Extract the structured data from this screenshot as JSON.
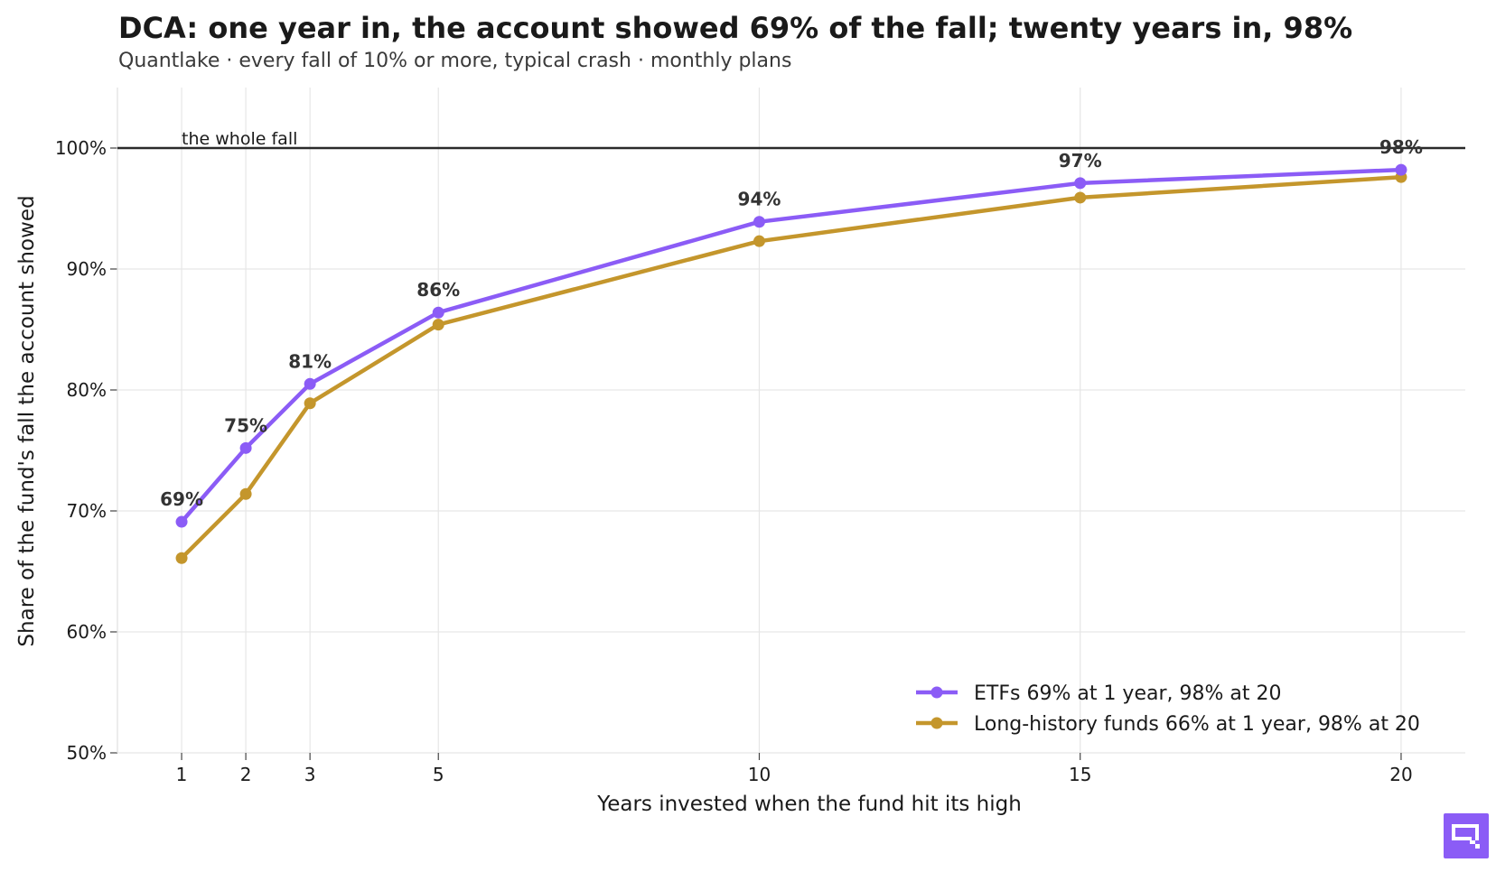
{
  "title": "DCA: one year in, the account showed 69% of the fall; twenty years in, 98%",
  "subtitle": "Quantlake  ·  every fall of 10% or more, typical crash  ·  monthly plans",
  "colors": {
    "etf": "#8b5cf6",
    "long": "#c4962c",
    "reference": "#2a2a2a",
    "grid": "#e6e6e6",
    "logo": "#8b5cf6"
  },
  "logo": {
    "icon": "quantlake-logo-icon"
  },
  "chart_data": {
    "type": "line",
    "xlabel": "Years invested when the fund hit its high",
    "ylabel": "Share of the fund's fall the account showed",
    "x": [
      1,
      2,
      3,
      5,
      10,
      15,
      20
    ],
    "xticks": [
      1,
      2,
      3,
      5,
      10,
      15,
      20
    ],
    "xlim": [
      0,
      21
    ],
    "ylim": [
      50,
      105
    ],
    "yticks": [
      50,
      60,
      70,
      80,
      90,
      100
    ],
    "ytick_labels": [
      "50%",
      "60%",
      "70%",
      "80%",
      "90%",
      "100%"
    ],
    "grid": true,
    "reference_line": {
      "y": 100,
      "label": "the whole fall"
    },
    "series": [
      {
        "name": "ETFs  69% at 1 year, 98% at 20",
        "color_key": "etf",
        "values": [
          69.1,
          75.2,
          80.5,
          86.4,
          93.9,
          97.1,
          98.2
        ],
        "labels": [
          "69%",
          "75%",
          "81%",
          "86%",
          "94%",
          "97%",
          "98%"
        ]
      },
      {
        "name": "Long-history funds  66% at 1 year, 98% at 20",
        "color_key": "long",
        "values": [
          66.1,
          71.4,
          78.9,
          85.4,
          92.3,
          95.9,
          97.6
        ]
      }
    ],
    "legend_position": "bottom-right"
  }
}
